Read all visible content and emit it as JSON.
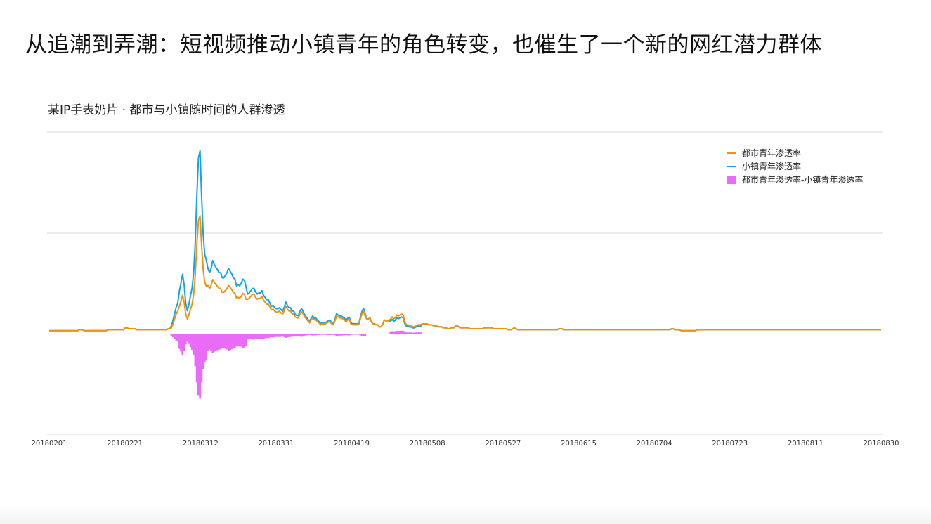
{
  "slide": {
    "title": "从追潮到弄潮：短视频推动小镇青年的角色转变，也催生了一个新的网红潜力群体"
  },
  "chart_data": {
    "type": "line",
    "title": "某IP手表奶片 · 都市与小镇随时间的人群渗透",
    "xlabel": "",
    "ylabel": "",
    "grid": true,
    "legend_position": "top-right",
    "x_tick_labels": [
      "20180201",
      "20180221",
      "20180312",
      "20180331",
      "20180419",
      "20180508",
      "20180527",
      "20180615",
      "20180704",
      "20180723",
      "20180811",
      "20180830"
    ],
    "series": [
      {
        "name": "都市青年渗透率",
        "color": "#f0920b",
        "kind": "line",
        "values": [
          0.3,
          0.3,
          0.3,
          0.3,
          0.3,
          0.3,
          0.3,
          0.3,
          0.3,
          0.3,
          0.3,
          0.3,
          0.3,
          0.3,
          0.3,
          0.3,
          0.3,
          0.3,
          0.3,
          0.4,
          0.4,
          0.4,
          0.3,
          0.3,
          0.3,
          0.3,
          0.3,
          0.3,
          0.3,
          0.3,
          0.3,
          0.3,
          0.3,
          0.3,
          0.3,
          0.3,
          0.3,
          0.4,
          0.4,
          0.4,
          0.4,
          0.4,
          0.4,
          0.4,
          0.4,
          0.4,
          0.4,
          0.4,
          0.6,
          0.6,
          0.5,
          0.5,
          0.5,
          0.5,
          0.5,
          0.4,
          0.4,
          0.4,
          0.4,
          0.4,
          0.4,
          0.4,
          0.4,
          0.4,
          0.4,
          0.4,
          0.4,
          0.4,
          0.4,
          0.4,
          0.4,
          0.4,
          0.4,
          0.4,
          0.4,
          0.5,
          0.5,
          0.6,
          1.0,
          1.5,
          2.0,
          2.3,
          2.8,
          3.3,
          3.9,
          3.2,
          2.0,
          1.5,
          1.9,
          2.5,
          3.0,
          4.0,
          6.0,
          9.0,
          11.5,
          12.0,
          9.0,
          6.5,
          5.2,
          4.8,
          4.9,
          4.6,
          4.9,
          5.5,
          5.2,
          5.0,
          4.8,
          4.6,
          4.6,
          4.2,
          4.2,
          4.4,
          4.6,
          4.9,
          4.7,
          4.5,
          4.2,
          4.1,
          3.6,
          3.7,
          3.6,
          3.8,
          4.1,
          4.0,
          3.5,
          3.5,
          3.6,
          3.8,
          4.0,
          4.0,
          3.7,
          3.5,
          3.6,
          3.6,
          3.8,
          3.4,
          3.2,
          3.0,
          3.0,
          2.7,
          2.4,
          2.5,
          2.3,
          2.2,
          2.2,
          2.3,
          2.1,
          2.0,
          2.3,
          2.8,
          2.5,
          2.3,
          2.3,
          2.0,
          2.0,
          1.7,
          1.6,
          1.6,
          2.0,
          2.2,
          2.0,
          1.7,
          1.5,
          1.3,
          1.1,
          1.4,
          1.6,
          1.4,
          1.4,
          1.2,
          1.1,
          0.9,
          1.0,
          1.0,
          1.0,
          1.1,
          1.2,
          1.2,
          1.0,
          0.9,
          1.3,
          1.8,
          1.7,
          1.6,
          1.6,
          1.5,
          1.4,
          1.2,
          1.4,
          1.5,
          1.0,
          0.9,
          0.9,
          0.9,
          0.9,
          0.9,
          1.5,
          2.0,
          2.3,
          1.8,
          1.5,
          1.5,
          1.6,
          1.2,
          1.0,
          1.0,
          0.9,
          0.9,
          0.7,
          0.7,
          0.9,
          1.4,
          1.3,
          1.3,
          1.3,
          1.5,
          1.7,
          1.5,
          1.6,
          1.9,
          1.8,
          1.9,
          2.0,
          1.9,
          1.2,
          0.9,
          0.9,
          0.8,
          0.8,
          0.7,
          0.7,
          0.8,
          0.9,
          0.9,
          0.9,
          1.0,
          1.0,
          1.0,
          1.0,
          0.9,
          0.9,
          0.9,
          0.8,
          0.8,
          0.8,
          0.7,
          0.7,
          0.7,
          0.6,
          0.6,
          0.6,
          0.5,
          0.5,
          0.6,
          0.6,
          0.6,
          0.8,
          0.8,
          0.7,
          0.6,
          0.6,
          0.6,
          0.6,
          0.6,
          0.6,
          0.5,
          0.5,
          0.5,
          0.5,
          0.5,
          0.5,
          0.5,
          0.5,
          0.5,
          0.6,
          0.6,
          0.6,
          0.6,
          0.6,
          0.6,
          0.5,
          0.5,
          0.5,
          0.5,
          0.5,
          0.5,
          0.5,
          0.5,
          0.5,
          0.4,
          0.4,
          0.4,
          0.5,
          0.6,
          0.5,
          0.4,
          0.4,
          0.4,
          0.4,
          0.4,
          0.4,
          0.4,
          0.4,
          0.4,
          0.4,
          0.4,
          0.4,
          0.4,
          0.4,
          0.4,
          0.4,
          0.4,
          0.4,
          0.4,
          0.4,
          0.4,
          0.4,
          0.4,
          0.4,
          0.4,
          0.4,
          0.5,
          0.5,
          0.5,
          0.4,
          0.4,
          0.4,
          0.4,
          0.4,
          0.4,
          0.4,
          0.4,
          0.4,
          0.4,
          0.4,
          0.4,
          0.4,
          0.4,
          0.4,
          0.4,
          0.4,
          0.4,
          0.4,
          0.4,
          0.4,
          0.4,
          0.4,
          0.4,
          0.4,
          0.4,
          0.4,
          0.4,
          0.4,
          0.4,
          0.4,
          0.4,
          0.4,
          0.4,
          0.4,
          0.4,
          0.4,
          0.4,
          0.4,
          0.4,
          0.4,
          0.4,
          0.4,
          0.4,
          0.4,
          0.4,
          0.4,
          0.4,
          0.4,
          0.4,
          0.4,
          0.4,
          0.4,
          0.4,
          0.4,
          0.4,
          0.4,
          0.4,
          0.4,
          0.4,
          0.4,
          0.4,
          0.4,
          0.4,
          0.4,
          0.4,
          0.4,
          0.4,
          0.5,
          0.5,
          0.4,
          0.4,
          0.4,
          0.4,
          0.3,
          0.3,
          0.3,
          0.3,
          0.3,
          0.3,
          0.3,
          0.3,
          0.3,
          0.3,
          0.4,
          0.4,
          0.4,
          0.4,
          0.4,
          0.4,
          0.4,
          0.4,
          0.4,
          0.4,
          0.4,
          0.4,
          0.4,
          0.4,
          0.4,
          0.4,
          0.4,
          0.4,
          0.4,
          0.4,
          0.4,
          0.4,
          0.4,
          0.4,
          0.4,
          0.4,
          0.4,
          0.4,
          0.4,
          0.4,
          0.4,
          0.4,
          0.4,
          0.4,
          0.4,
          0.4,
          0.4,
          0.4,
          0.4,
          0.4,
          0.4,
          0.4,
          0.4,
          0.4,
          0.4,
          0.4,
          0.4,
          0.4,
          0.4,
          0.4,
          0.4,
          0.4,
          0.4,
          0.4,
          0.4,
          0.4,
          0.4,
          0.4,
          0.4,
          0.4,
          0.4,
          0.4,
          0.4,
          0.4,
          0.4,
          0.4,
          0.4,
          0.4,
          0.4,
          0.4,
          0.4,
          0.4,
          0.4,
          0.4,
          0.4,
          0.4,
          0.4,
          0.4,
          0.4,
          0.4,
          0.4,
          0.4,
          0.4,
          0.4,
          0.4,
          0.4,
          0.4,
          0.4,
          0.4,
          0.4,
          0.4,
          0.4,
          0.4,
          0.4,
          0.4,
          0.4,
          0.4,
          0.4,
          0.4,
          0.4,
          0.4,
          0.4,
          0.4,
          0.4,
          0.4,
          0.4,
          0.4,
          0.4,
          0.4,
          0.4,
          0.4,
          0.4,
          0.4,
          0.4,
          0.4,
          0.4,
          0.4
        ]
      },
      {
        "name": "小镇青年渗透率",
        "color": "#12a3e8",
        "kind": "line",
        "values": []
      },
      {
        "name": "都市青年渗透率-小镇青年渗透率",
        "color": "#e86cf5",
        "kind": "bar",
        "values": []
      }
    ]
  }
}
